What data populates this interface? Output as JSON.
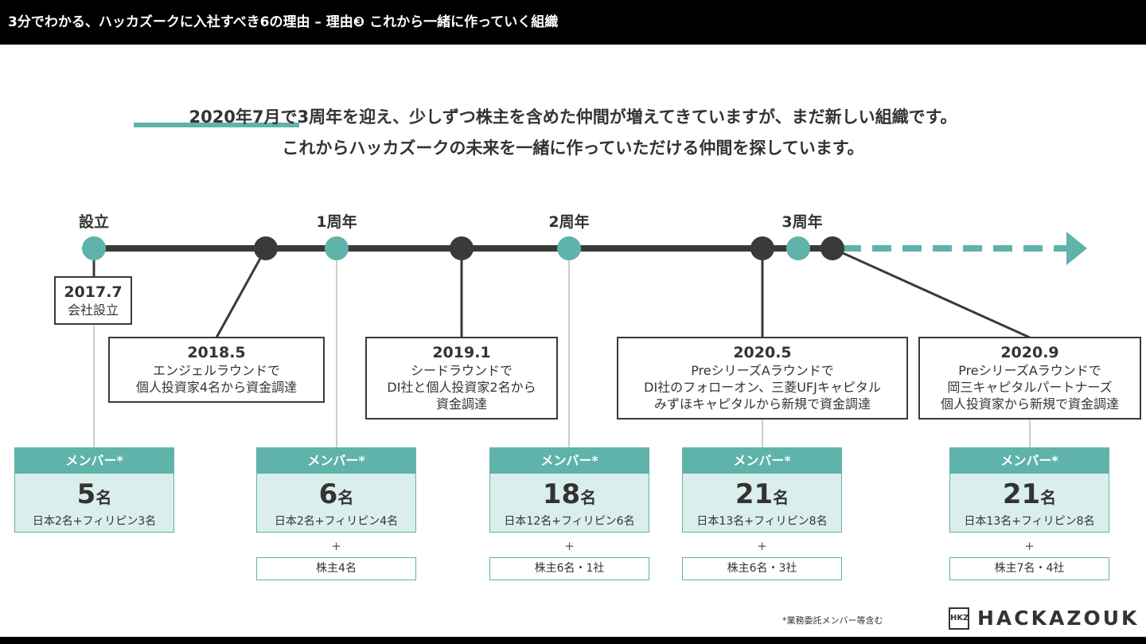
{
  "header": {
    "title": "3分でわかる、ハッカズークに入社すべき6の理由 – 理由❸ これから一緒に作っていく組織"
  },
  "headline": {
    "line1_highlight": "2020年7月で3周年",
    "line1_rest": "を迎え、少しずつ株主を含めた仲間が増えてきていますが、まだ新しい組織です。",
    "line2": "これからハッカズークの未来を一緒に作っていただける仲間を探しています。"
  },
  "milestones": {
    "founding": "設立",
    "year1": "1周年",
    "year2": "2周年",
    "year3": "3周年"
  },
  "events": [
    {
      "date": "2017.7",
      "desc": [
        "会社設立"
      ]
    },
    {
      "date": "2018.5",
      "desc": [
        "エンジェルラウンドで",
        "個人投資家4名から資金調達"
      ]
    },
    {
      "date": "2019.1",
      "desc": [
        "シードラウンドで",
        "DI社と個人投資家2名から",
        "資金調達"
      ]
    },
    {
      "date": "2020.5",
      "desc": [
        "PreシリーズAラウンドで",
        "DI社のフォローオン、三菱UFJキャピタル",
        "みずほキャピタルから新規で資金調達"
      ]
    },
    {
      "date": "2020.9",
      "desc": [
        "PreシリーズAラウンドで",
        "岡三キャピタルパートナーズ",
        "個人投資家から新規で資金調達"
      ]
    }
  ],
  "members": [
    {
      "label": "メンバー*",
      "count": "5",
      "unit": "名",
      "detail": "日本2名+フィリピン3名"
    },
    {
      "label": "メンバー*",
      "count": "6",
      "unit": "名",
      "detail": "日本2名+フィリピン4名",
      "plus": "+",
      "holders": "株主4名"
    },
    {
      "label": "メンバー*",
      "count": "18",
      "unit": "名",
      "detail": "日本12名+フィリピン6名",
      "plus": "+",
      "holders": "株主6名・1社"
    },
    {
      "label": "メンバー*",
      "count": "21",
      "unit": "名",
      "detail": "日本13名+フィリピン8名",
      "plus": "+",
      "holders": "株主6名・3社"
    },
    {
      "label": "メンバー*",
      "count": "21",
      "unit": "名",
      "detail": "日本13名+フィリピン8名",
      "plus": "+",
      "holders": "株主7名・4社"
    }
  ],
  "footer": {
    "footnote": "*業務委託メンバー等含む",
    "logo_mark": "HKZ",
    "logo_text": "HACKAZOUK"
  },
  "colors": {
    "accent": "#5fb3aa",
    "dark": "#3a3a3a",
    "light": "#daefec"
  }
}
